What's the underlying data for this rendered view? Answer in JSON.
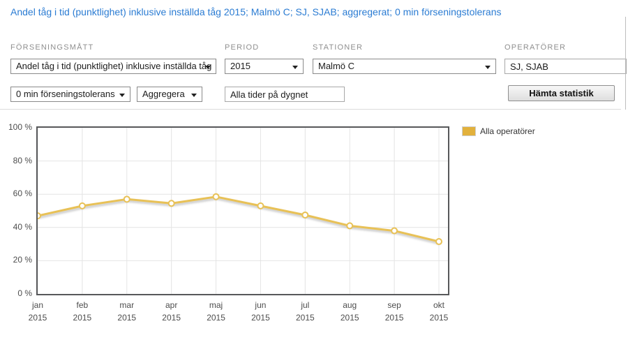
{
  "header": {
    "title": "Andel tåg i tid (punktlighet) inklusive inställda tåg 2015; Malmö C; SJ, SJAB; aggregerat; 0 min förseningstolerans"
  },
  "filters": {
    "forseningsmatt_label": "FÖRSENINGSMÅTT",
    "forseningsmatt_value": "Andel tåg i tid (punktlighet) inklusive inställda tåg",
    "period_label": "PERIOD",
    "period_value": "2015",
    "stationer_label": "STATIONER",
    "stationer_value": "Malmö C",
    "operatorer_label": "OPERATÖRER",
    "operatorer_value": "SJ, SJAB",
    "tolerans_value": "0 min förseningstolerans",
    "aggregera_value": "Aggregera",
    "tid_value": "Alla tider på dygnet",
    "submit_label": "Hämta statistik"
  },
  "icons": {
    "dropdown_caret": "caret-down-triangle"
  },
  "colors": {
    "title_blue": "#2b7cd3",
    "label_grey": "#8f8f8f",
    "plot_border": "#57585a",
    "gridline": "#e4e4e4",
    "series_gold": "#e8c156",
    "legend_swatch": "#e2b13c"
  },
  "chart_data": {
    "type": "line",
    "title": "",
    "categories": [
      "jan",
      "feb",
      "mar",
      "apr",
      "maj",
      "jun",
      "jul",
      "aug",
      "sep",
      "okt"
    ],
    "category_year": "2015",
    "series": [
      {
        "name": "Alla operatörer",
        "color": "#e8c156",
        "marker": "circle-white-fill",
        "values": [
          47,
          53,
          57,
          54.5,
          58.5,
          53,
          47.5,
          41,
          38,
          31.5
        ]
      }
    ],
    "ylim": [
      0,
      100
    ],
    "yticks": [
      0,
      20,
      40,
      60,
      80,
      100
    ],
    "ytick_suffix": " %",
    "grid": true,
    "legend_position": "top-right"
  }
}
